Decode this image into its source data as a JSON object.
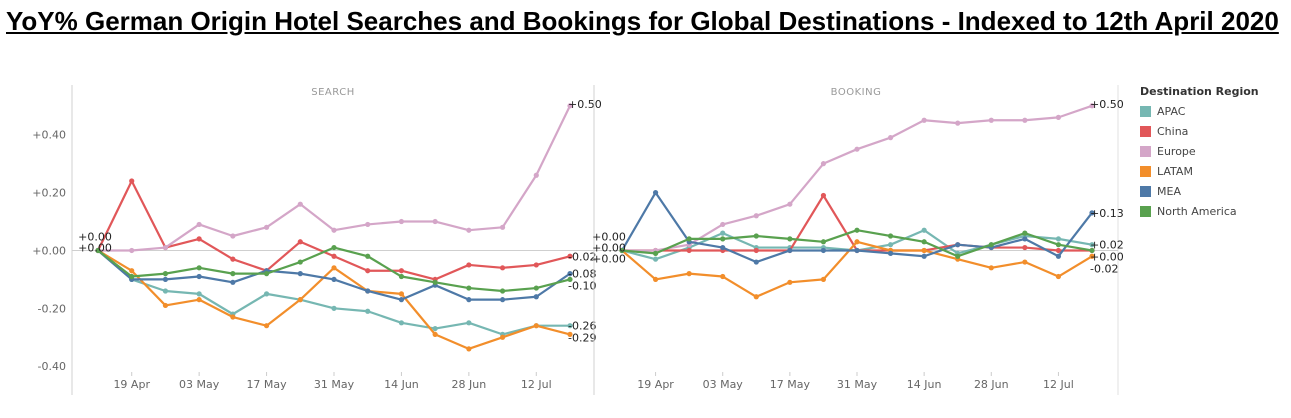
{
  "title": "YoY% German Origin Hotel Searches and Bookings for Global Destinations - Indexed to 12th April 2020",
  "legend": {
    "title": "Destination Region",
    "items": [
      {
        "label": "APAC",
        "color": "#76b7b2"
      },
      {
        "label": "China",
        "color": "#e15759"
      },
      {
        "label": "Europe",
        "color": "#d4a6c8"
      },
      {
        "label": "LATAM",
        "color": "#f28e2b"
      },
      {
        "label": "MEA",
        "color": "#4e79a7"
      },
      {
        "label": "North America",
        "color": "#59a14f"
      }
    ]
  },
  "chart_data": [
    {
      "type": "line",
      "panel_title": "SEARCH",
      "x": [
        "12 Apr",
        "19 Apr",
        "26 Apr",
        "03 May",
        "10 May",
        "17 May",
        "24 May",
        "31 May",
        "07 Jun",
        "14 Jun",
        "21 Jun",
        "28 Jun",
        "05 Jul",
        "12 Jul",
        "19 Jul"
      ],
      "x_tick_labels": [
        "19 Apr",
        "03 May",
        "17 May",
        "31 May",
        "14 Jun",
        "28 Jun",
        "12 Jul"
      ],
      "y_tick_labels": [
        "+0.40",
        "+0.20",
        "+0.00",
        "-0.20",
        "-0.40"
      ],
      "ylim": [
        -0.42,
        0.52
      ],
      "series": [
        {
          "name": "APAC",
          "color": "#76b7b2",
          "values": [
            0.0,
            -0.1,
            -0.14,
            -0.15,
            -0.22,
            -0.15,
            -0.17,
            -0.2,
            -0.21,
            -0.25,
            -0.27,
            -0.25,
            -0.29,
            -0.26,
            -0.26
          ]
        },
        {
          "name": "China",
          "color": "#e15759",
          "values": [
            0.0,
            0.24,
            0.01,
            0.04,
            -0.03,
            -0.07,
            0.03,
            -0.02,
            -0.07,
            -0.07,
            -0.1,
            -0.05,
            -0.06,
            -0.05,
            -0.02
          ]
        },
        {
          "name": "Europe",
          "color": "#d4a6c8",
          "values": [
            0.0,
            0.0,
            0.01,
            0.09,
            0.05,
            0.08,
            0.16,
            0.07,
            0.09,
            0.1,
            0.1,
            0.07,
            0.08,
            0.26,
            0.5
          ]
        },
        {
          "name": "LATAM",
          "color": "#f28e2b",
          "values": [
            0.0,
            -0.07,
            -0.19,
            -0.17,
            -0.23,
            -0.26,
            -0.17,
            -0.06,
            -0.14,
            -0.15,
            -0.29,
            -0.34,
            -0.3,
            -0.26,
            -0.29
          ]
        },
        {
          "name": "MEA",
          "color": "#4e79a7",
          "values": [
            0.0,
            -0.1,
            -0.1,
            -0.09,
            -0.11,
            -0.07,
            -0.08,
            -0.1,
            -0.14,
            -0.17,
            -0.12,
            -0.17,
            -0.17,
            -0.16,
            -0.08
          ]
        },
        {
          "name": "North America",
          "color": "#59a14f",
          "values": [
            0.0,
            -0.09,
            -0.08,
            -0.06,
            -0.08,
            -0.08,
            -0.04,
            0.01,
            -0.02,
            -0.09,
            -0.11,
            -0.13,
            -0.14,
            -0.13,
            -0.1
          ]
        }
      ],
      "start_labels": [
        "+0.00",
        "+0.00"
      ],
      "end_labels": [
        "+0.50",
        "-0.02",
        "-0.08",
        "-0.10",
        "-0.26",
        "-0.29"
      ]
    },
    {
      "type": "line",
      "panel_title": "BOOKING",
      "x": [
        "12 Apr",
        "19 Apr",
        "26 Apr",
        "03 May",
        "10 May",
        "17 May",
        "24 May",
        "31 May",
        "07 Jun",
        "14 Jun",
        "21 Jun",
        "28 Jun",
        "05 Jul",
        "12 Jul",
        "19 Jul"
      ],
      "x_tick_labels": [
        "19 Apr",
        "03 May",
        "17 May",
        "31 May",
        "14 Jun",
        "28 Jun",
        "12 Jul"
      ],
      "ylim": [
        -0.42,
        0.52
      ],
      "series": [
        {
          "name": "APAC",
          "color": "#76b7b2",
          "values": [
            0.0,
            -0.03,
            0.01,
            0.06,
            0.01,
            0.01,
            0.01,
            0.0,
            0.02,
            0.07,
            -0.01,
            0.02,
            0.05,
            0.04,
            0.02
          ]
        },
        {
          "name": "China",
          "color": "#e15759",
          "values": [
            0.0,
            0.0,
            0.0,
            0.0,
            0.0,
            0.0,
            0.19,
            0.0,
            0.0,
            0.0,
            0.02,
            0.01,
            0.01,
            0.0,
            0.0
          ]
        },
        {
          "name": "Europe",
          "color": "#d4a6c8",
          "values": [
            0.0,
            0.0,
            0.02,
            0.09,
            0.12,
            0.16,
            0.3,
            0.35,
            0.39,
            0.45,
            0.44,
            0.45,
            0.45,
            0.46,
            0.5
          ]
        },
        {
          "name": "LATAM",
          "color": "#f28e2b",
          "values": [
            0.0,
            -0.1,
            -0.08,
            -0.09,
            -0.16,
            -0.11,
            -0.1,
            0.03,
            0.0,
            0.0,
            -0.03,
            -0.06,
            -0.04,
            -0.09,
            -0.02
          ]
        },
        {
          "name": "MEA",
          "color": "#4e79a7",
          "values": [
            0.0,
            0.2,
            0.03,
            0.01,
            -0.04,
            0.0,
            0.0,
            0.0,
            -0.01,
            -0.02,
            0.02,
            0.01,
            0.04,
            -0.02,
            0.13
          ]
        },
        {
          "name": "North America",
          "color": "#59a14f",
          "values": [
            0.0,
            -0.01,
            0.04,
            0.04,
            0.05,
            0.04,
            0.03,
            0.07,
            0.05,
            0.03,
            -0.02,
            0.02,
            0.06,
            0.02,
            0.0
          ]
        }
      ],
      "start_labels": [
        "+0.00",
        "+0.00",
        "+0.00"
      ],
      "end_labels": [
        "+0.50",
        "+0.13",
        "+0.02",
        "+0.00",
        "-0.02"
      ]
    }
  ]
}
